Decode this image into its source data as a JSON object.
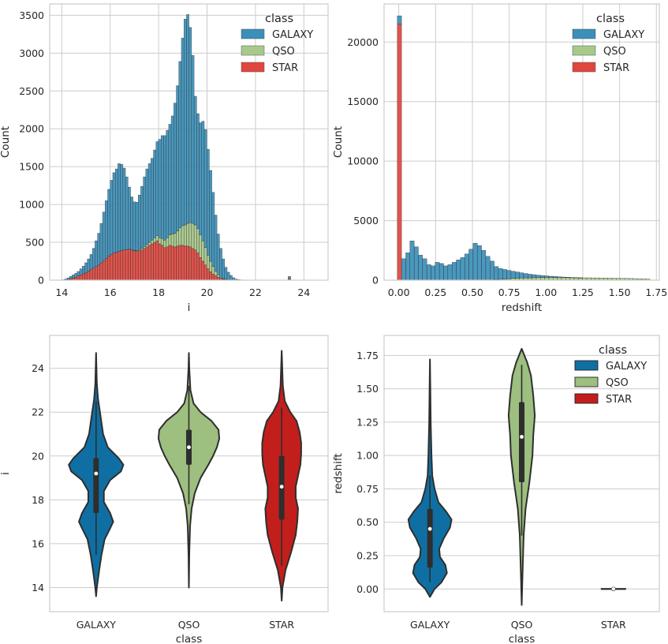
{
  "colors": {
    "GALAXY": "#3b8fb8",
    "QSO": "#a8c98a",
    "STAR": "#e0463e",
    "GALAXY_violin": "#0f6fa3",
    "QSO_violin": "#9dbf7f",
    "STAR_violin": "#c21f1c",
    "grid": "#cccccc",
    "frame": "#cccccc",
    "dark": "#2e2e2e"
  },
  "chart_data": [
    {
      "id": "hist-i",
      "type": "bar",
      "stacked": true,
      "xlabel": "i",
      "ylabel": "Count",
      "xlim": [
        13.5,
        25
      ],
      "ylim": [
        0,
        3650
      ],
      "xticks": [
        14,
        16,
        18,
        20,
        22,
        24
      ],
      "yticks": [
        0,
        500,
        1000,
        1500,
        2000,
        2500,
        3000,
        3500
      ],
      "grid": true,
      "legend": {
        "title": "class",
        "placement": "top-right",
        "entries": [
          "GALAXY",
          "QSO",
          "STAR"
        ]
      },
      "bin_start": 13.9,
      "bin_width": 0.105,
      "series": [
        {
          "name": "STAR",
          "values": [
            0,
            0,
            5,
            10,
            20,
            30,
            40,
            55,
            70,
            85,
            100,
            120,
            140,
            160,
            180,
            200,
            230,
            260,
            290,
            320,
            340,
            360,
            370,
            380,
            390,
            400,
            405,
            410,
            400,
            390,
            380,
            390,
            400,
            420,
            440,
            460,
            480,
            500,
            520,
            480,
            460,
            430,
            440,
            460,
            450,
            440,
            450,
            460,
            460,
            450,
            450,
            440,
            420,
            400,
            360,
            300,
            250,
            200,
            150,
            110,
            80,
            60,
            40,
            25,
            15,
            10,
            5,
            3,
            2,
            0,
            0,
            0,
            0,
            0,
            0,
            0,
            0,
            0,
            0,
            0,
            0,
            0,
            0,
            0,
            0,
            0,
            0,
            0,
            0,
            0,
            20
          ]
        },
        {
          "name": "QSO",
          "values": [
            0,
            0,
            0,
            0,
            0,
            0,
            0,
            0,
            0,
            0,
            0,
            0,
            0,
            0,
            0,
            0,
            0,
            0,
            0,
            0,
            0,
            0,
            0,
            0,
            0,
            0,
            0,
            0,
            0,
            5,
            10,
            15,
            20,
            25,
            30,
            40,
            50,
            60,
            70,
            80,
            90,
            100,
            120,
            140,
            160,
            180,
            200,
            230,
            260,
            280,
            300,
            320,
            330,
            330,
            320,
            300,
            270,
            230,
            180,
            140,
            100,
            60,
            30,
            15,
            5,
            0,
            0,
            0,
            0,
            0,
            0,
            0,
            0,
            0,
            0,
            0,
            0,
            0,
            0,
            0,
            0,
            0,
            0,
            0,
            0,
            0,
            0,
            0,
            0,
            0,
            0
          ]
        },
        {
          "name": "GALAXY",
          "values": [
            0,
            5,
            10,
            20,
            30,
            40,
            50,
            60,
            80,
            100,
            130,
            160,
            200,
            260,
            340,
            420,
            520,
            640,
            760,
            880,
            980,
            1060,
            1100,
            1160,
            1140,
            1080,
            960,
            820,
            700,
            640,
            640,
            720,
            820,
            920,
            1000,
            1040,
            1080,
            1160,
            1240,
            1300,
            1360,
            1380,
            1420,
            1460,
            1560,
            1720,
            1920,
            2200,
            2480,
            2720,
            2760,
            2580,
            2220,
            1700,
            1520,
            1480,
            1580,
            1560,
            1400,
            1200,
            980,
            740,
            540,
            380,
            260,
            160,
            100,
            60,
            30,
            15,
            8,
            4,
            2,
            1,
            0,
            0,
            0,
            0,
            0,
            0,
            0,
            0,
            0,
            0,
            0,
            0,
            0,
            0,
            0,
            0,
            30
          ]
        }
      ]
    },
    {
      "id": "hist-redshift",
      "type": "bar",
      "stacked": true,
      "xlabel": "redshift",
      "ylabel": "Count",
      "xlim": [
        -0.1,
        1.77
      ],
      "ylim": [
        0,
        23200
      ],
      "xticks": [
        0.0,
        0.25,
        0.5,
        0.75,
        1.0,
        1.25,
        1.5,
        1.75
      ],
      "xticklabels": [
        "0.00",
        "0.25",
        "0.50",
        "0.75",
        "1.00",
        "1.25",
        "1.50",
        "1.75"
      ],
      "yticks": [
        0,
        5000,
        10000,
        15000,
        20000
      ],
      "grid": true,
      "legend": {
        "title": "class",
        "placement": "top-right",
        "entries": [
          "GALAXY",
          "QSO",
          "STAR"
        ]
      },
      "bin_start": -0.01,
      "bin_width": 0.0286,
      "series": [
        {
          "name": "STAR",
          "values": [
            21500,
            0,
            0,
            0,
            0,
            0,
            0,
            0,
            0,
            0,
            0,
            0,
            0,
            0,
            0,
            0,
            0,
            0,
            0,
            0,
            0,
            0,
            0,
            0,
            0,
            0,
            0,
            0,
            0,
            0,
            0,
            0,
            0,
            0,
            0,
            0,
            0,
            0,
            0,
            0,
            0,
            0,
            0,
            0,
            0,
            0,
            0,
            0,
            0,
            0,
            0,
            0,
            0,
            0,
            0,
            0,
            0,
            0,
            0,
            0
          ]
        },
        {
          "name": "QSO",
          "values": [
            0,
            0,
            0,
            0,
            0,
            0,
            0,
            0,
            0,
            0,
            0,
            0,
            0,
            0,
            0,
            0,
            0,
            0,
            0,
            0,
            0,
            0,
            0,
            50,
            80,
            100,
            120,
            150,
            170,
            180,
            190,
            200,
            210,
            220,
            230,
            230,
            230,
            230,
            220,
            220,
            220,
            210,
            210,
            200,
            200,
            200,
            190,
            190,
            180,
            180,
            170,
            160,
            160,
            150,
            150,
            140,
            130,
            120,
            110,
            100
          ]
        },
        {
          "name": "GALAXY",
          "values": [
            700,
            1800,
            2300,
            3300,
            2800,
            2100,
            1800,
            1300,
            1200,
            1500,
            1400,
            1200,
            1300,
            1500,
            1700,
            1900,
            2200,
            2600,
            3100,
            2900,
            2500,
            2000,
            1600,
            1100,
            900,
            800,
            700,
            600,
            520,
            440,
            370,
            300,
            250,
            200,
            160,
            130,
            100,
            80,
            60,
            40,
            30,
            20,
            10,
            5,
            0,
            0,
            0,
            0,
            0,
            0,
            0,
            0,
            0,
            0,
            0,
            0,
            0,
            0,
            0,
            0
          ]
        }
      ]
    },
    {
      "id": "violin-i",
      "type": "violin",
      "xlabel": "class",
      "ylabel": "i",
      "categories": [
        "GALAXY",
        "QSO",
        "STAR"
      ],
      "ylim": [
        12.9,
        25.5
      ],
      "yticks": [
        14,
        16,
        18,
        20,
        22,
        24
      ],
      "grid": true,
      "violins": [
        {
          "name": "GALAXY",
          "min": 13.6,
          "max": 24.7,
          "q1": 17.4,
          "median": 19.2,
          "q3": 19.9,
          "whisker_low": 15.5,
          "whisker_high": 22.5,
          "profile": [
            [
              13.6,
              0
            ],
            [
              14.0,
              0.02
            ],
            [
              14.8,
              0.08
            ],
            [
              15.5,
              0.14
            ],
            [
              16.2,
              0.22
            ],
            [
              16.7,
              0.36
            ],
            [
              17.0,
              0.44
            ],
            [
              17.4,
              0.36
            ],
            [
              17.9,
              0.2
            ],
            [
              18.4,
              0.2
            ],
            [
              18.9,
              0.36
            ],
            [
              19.3,
              0.64
            ],
            [
              19.6,
              0.7
            ],
            [
              19.9,
              0.58
            ],
            [
              20.4,
              0.3
            ],
            [
              21.0,
              0.18
            ],
            [
              21.5,
              0.14
            ],
            [
              22.0,
              0.1
            ],
            [
              22.6,
              0.05
            ],
            [
              23.3,
              0.02
            ],
            [
              24.7,
              0
            ]
          ]
        },
        {
          "name": "QSO",
          "min": 14.0,
          "max": 24.7,
          "q1": 19.6,
          "median": 20.4,
          "q3": 21.2,
          "whisker_low": 17.8,
          "whisker_high": 23.2,
          "profile": [
            [
              14.0,
              0
            ],
            [
              15.5,
              0.01
            ],
            [
              16.8,
              0.03
            ],
            [
              17.6,
              0.07
            ],
            [
              18.3,
              0.15
            ],
            [
              19.0,
              0.3
            ],
            [
              19.6,
              0.5
            ],
            [
              20.0,
              0.62
            ],
            [
              20.4,
              0.72
            ],
            [
              20.8,
              0.78
            ],
            [
              21.2,
              0.76
            ],
            [
              21.6,
              0.58
            ],
            [
              22.0,
              0.3
            ],
            [
              22.4,
              0.12
            ],
            [
              23.0,
              0.04
            ],
            [
              24.0,
              0.01
            ],
            [
              24.7,
              0
            ]
          ]
        },
        {
          "name": "STAR",
          "min": 13.4,
          "max": 24.8,
          "q1": 17.1,
          "median": 18.6,
          "q3": 20.0,
          "whisker_low": 15.0,
          "whisker_high": 22.2,
          "profile": [
            [
              13.4,
              0
            ],
            [
              14.0,
              0.02
            ],
            [
              14.8,
              0.1
            ],
            [
              15.6,
              0.24
            ],
            [
              16.4,
              0.36
            ],
            [
              17.0,
              0.4
            ],
            [
              17.6,
              0.42
            ],
            [
              18.1,
              0.36
            ],
            [
              18.6,
              0.36
            ],
            [
              19.1,
              0.42
            ],
            [
              19.6,
              0.48
            ],
            [
              20.1,
              0.5
            ],
            [
              20.6,
              0.5
            ],
            [
              21.1,
              0.46
            ],
            [
              21.6,
              0.38
            ],
            [
              22.0,
              0.22
            ],
            [
              22.5,
              0.08
            ],
            [
              23.2,
              0.03
            ],
            [
              24.8,
              0
            ]
          ]
        }
      ]
    },
    {
      "id": "violin-redshift",
      "type": "violin",
      "xlabel": "class",
      "ylabel": "redshift",
      "categories": [
        "GALAXY",
        "QSO",
        "STAR"
      ],
      "ylim": [
        -0.17,
        1.9
      ],
      "yticks": [
        0.0,
        0.25,
        0.5,
        0.75,
        1.0,
        1.25,
        1.5,
        1.75
      ],
      "yticklabels": [
        "0.00",
        "0.25",
        "0.50",
        "0.75",
        "1.00",
        "1.25",
        "1.50",
        "1.75"
      ],
      "grid": true,
      "legend": {
        "title": "class",
        "placement": "top-right",
        "entries": [
          "GALAXY",
          "QSO",
          "STAR"
        ]
      },
      "violins": [
        {
          "name": "GALAXY",
          "min": -0.06,
          "max": 1.72,
          "q1": 0.16,
          "median": 0.45,
          "q3": 0.6,
          "whisker_low": 0.05,
          "whisker_high": 0.85,
          "profile": [
            [
              -0.06,
              0
            ],
            [
              0.0,
              0.12
            ],
            [
              0.05,
              0.3
            ],
            [
              0.12,
              0.44
            ],
            [
              0.18,
              0.4
            ],
            [
              0.24,
              0.26
            ],
            [
              0.3,
              0.24
            ],
            [
              0.38,
              0.36
            ],
            [
              0.46,
              0.52
            ],
            [
              0.52,
              0.56
            ],
            [
              0.58,
              0.42
            ],
            [
              0.65,
              0.22
            ],
            [
              0.75,
              0.12
            ],
            [
              0.85,
              0.06
            ],
            [
              1.0,
              0.04
            ],
            [
              1.25,
              0.02
            ],
            [
              1.5,
              0.01
            ],
            [
              1.72,
              0
            ]
          ]
        },
        {
          "name": "QSO",
          "min": -0.12,
          "max": 1.8,
          "q1": 0.8,
          "median": 1.14,
          "q3": 1.4,
          "whisker_low": 0.4,
          "whisker_high": 1.68,
          "profile": [
            [
              -0.12,
              0
            ],
            [
              0.1,
              0.02
            ],
            [
              0.4,
              0.05
            ],
            [
              0.6,
              0.1
            ],
            [
              0.8,
              0.2
            ],
            [
              1.0,
              0.28
            ],
            [
              1.15,
              0.3
            ],
            [
              1.3,
              0.34
            ],
            [
              1.45,
              0.3
            ],
            [
              1.6,
              0.24
            ],
            [
              1.7,
              0.14
            ],
            [
              1.8,
              0
            ]
          ]
        },
        {
          "name": "STAR",
          "min": -0.005,
          "max": 0.005,
          "q1": 0.0,
          "median": 0.0,
          "q3": 0.0,
          "whisker_low": 0.0,
          "whisker_high": 0.0,
          "profile": [],
          "flat": true
        }
      ]
    }
  ]
}
